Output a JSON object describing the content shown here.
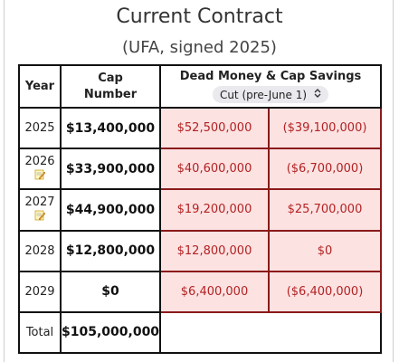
{
  "header": {
    "title": "Current Contract",
    "subtitle": "(UFA, signed 2025)"
  },
  "table": {
    "col_year": "Year",
    "col_cap_line1": "Cap",
    "col_cap_line2": "Number",
    "col_dead": "Dead Money & Cap Savings",
    "select_value": "Cut (pre-June 1)",
    "rows": [
      {
        "year": "2025",
        "note": false,
        "cap": "$13,400,000",
        "dead": "$52,500,000",
        "savings": "($39,100,000)"
      },
      {
        "year": "2026",
        "note": true,
        "cap": "$33,900,000",
        "dead": "$40,600,000",
        "savings": "($6,700,000)"
      },
      {
        "year": "2027",
        "note": true,
        "cap": "$44,900,000",
        "dead": "$19,200,000",
        "savings": "$25,700,000"
      },
      {
        "year": "2028",
        "note": false,
        "cap": "$12,800,000",
        "dead": "$12,800,000",
        "savings": "$0"
      },
      {
        "year": "2029",
        "note": false,
        "cap": "$0",
        "dead": "$6,400,000",
        "savings": "($6,400,000)"
      }
    ],
    "total_label": "Total",
    "total_cap": "$105,000,000"
  },
  "colors": {
    "dead_bg": "#fde2e2",
    "dead_text": "#b22222",
    "dead_border": "#8b1a1a"
  }
}
